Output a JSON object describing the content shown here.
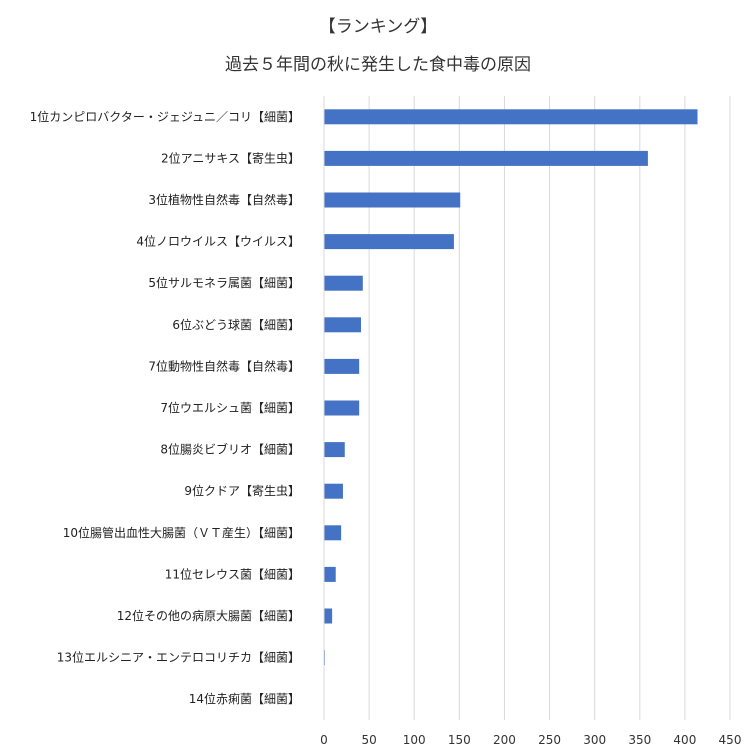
{
  "chart_data": {
    "type": "bar",
    "orientation": "horizontal",
    "title": "【ランキング】",
    "subtitle": "過去５年間の秋に発生した食中毒の原因",
    "categories": [
      "1位カンピロバクター・ジェジュニ／コリ【細菌】",
      "2位アニサキス【寄生虫】",
      "3位植物性自然毒【自然毒】",
      "4位ノロウイルス【ウイルス】",
      "5位サルモネラ属菌【細菌】",
      "6位ぶどう球菌【細菌】",
      "7位動物性自然毒【自然毒】",
      "7位ウエルシュ菌【細菌】",
      "8位腸炎ビブリオ【細菌】",
      "9位クドア【寄生虫】",
      "10位腸管出血性大腸菌（ＶＴ産生）【細菌】",
      "11位セレウス菌【細菌】",
      "12位その他の病原大腸菌【細菌】",
      "13位エルシニア・エンテロコリチカ【細菌】",
      "14位赤痢菌【細菌】"
    ],
    "values": [
      414,
      359,
      151,
      144,
      43,
      41,
      39,
      39,
      23,
      21,
      19,
      13,
      9,
      1,
      0
    ],
    "xlim": [
      0,
      450
    ],
    "xticks": [
      "0",
      "50",
      "100",
      "150",
      "200",
      "250",
      "300",
      "350",
      "400",
      "450"
    ],
    "grid": true,
    "bar_color": "#4472c4"
  }
}
